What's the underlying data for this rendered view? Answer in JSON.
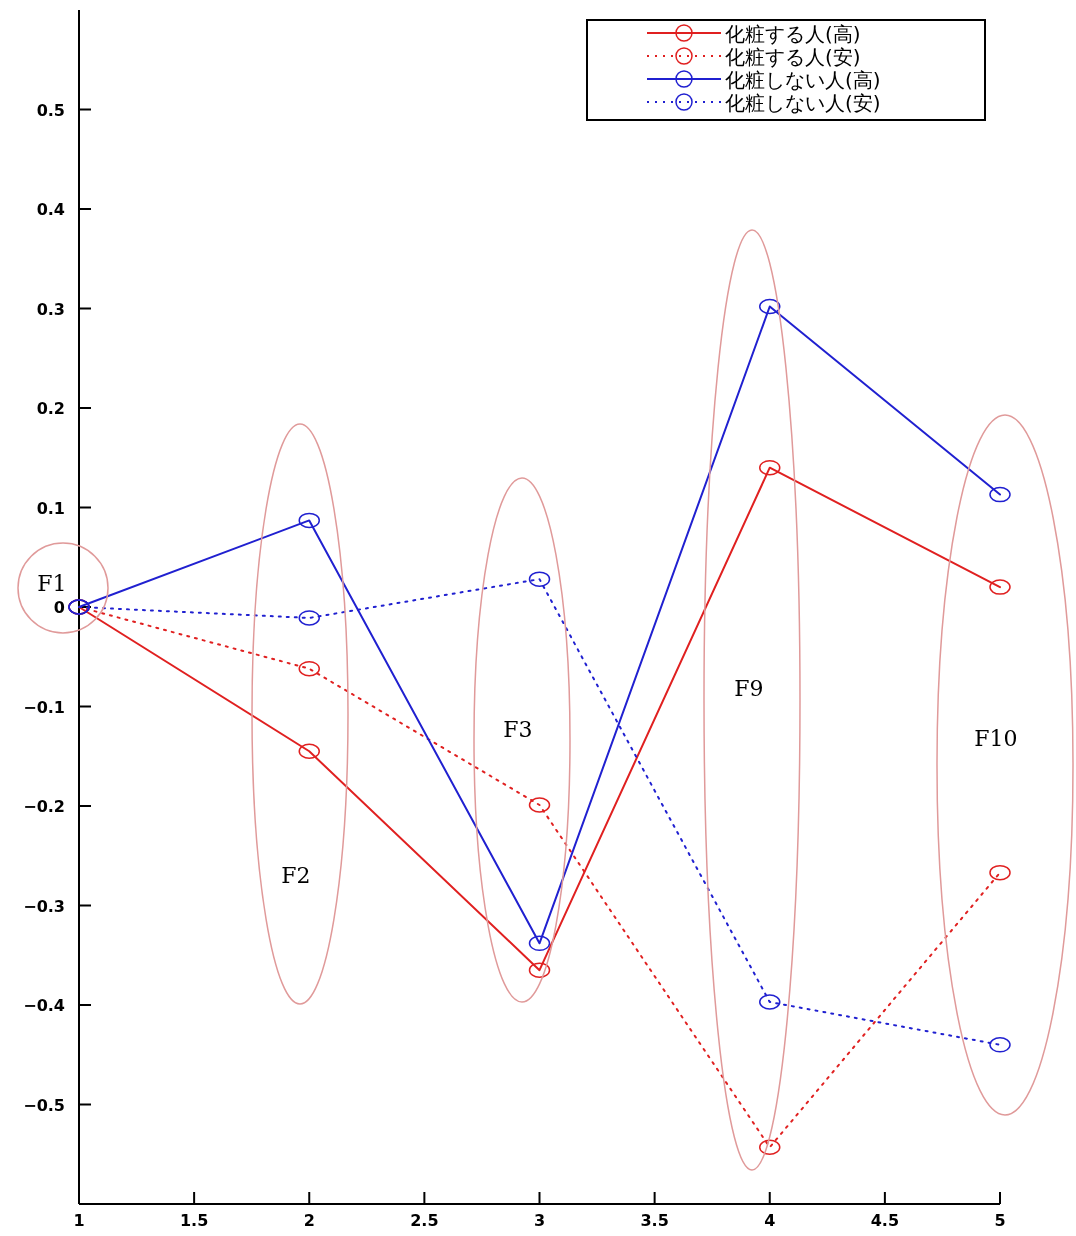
{
  "chart_data": {
    "type": "line",
    "x": [
      1,
      2,
      3,
      4,
      5
    ],
    "series": [
      {
        "name": "化粧する人(高)",
        "color": "#e02020",
        "line_style": "solid",
        "values": [
          0,
          -0.145,
          -0.365,
          0.14,
          0.02
        ]
      },
      {
        "name": "化粧する人(安)",
        "color": "#e02020",
        "line_style": "dotted",
        "values": [
          0,
          -0.062,
          -0.199,
          -0.543,
          -0.267
        ]
      },
      {
        "name": "化粧しない人(高)",
        "color": "#2020d0",
        "line_style": "solid",
        "values": [
          0,
          0.087,
          -0.338,
          0.302,
          0.113
        ]
      },
      {
        "name": "化粧しない人(安)",
        "color": "#2020d0",
        "line_style": "dotted",
        "values": [
          0,
          -0.011,
          0.028,
          -0.397,
          -0.44
        ]
      }
    ],
    "xlim": [
      1,
      5
    ],
    "xticks": [
      1,
      1.5,
      2,
      2.5,
      3,
      3.5,
      4,
      4.5,
      5
    ],
    "ylim": [
      -0.6,
      0.6
    ],
    "yticks": [
      -0.5,
      -0.4,
      -0.3,
      -0.2,
      -0.1,
      0,
      0.1,
      0.2,
      0.3,
      0.4,
      0.5
    ],
    "marker": "circle",
    "legend": "top right",
    "grid": false,
    "annotations": [
      "F1",
      "F2",
      "F3",
      "F9",
      "F10"
    ]
  }
}
